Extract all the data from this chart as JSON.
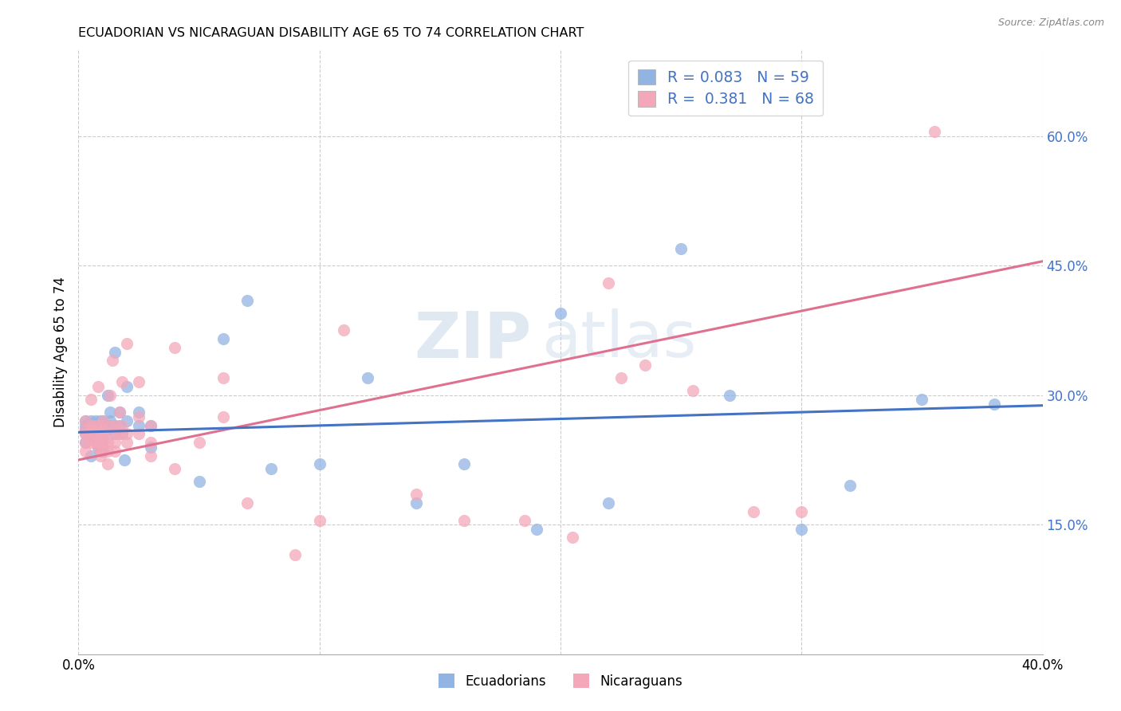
{
  "title": "ECUADORIAN VS NICARAGUAN DISABILITY AGE 65 TO 74 CORRELATION CHART",
  "source": "Source: ZipAtlas.com",
  "ylabel_label": "Disability Age 65 to 74",
  "xlim": [
    0.0,
    0.4
  ],
  "ylim": [
    0.0,
    0.7
  ],
  "blue_color": "#92b4e3",
  "pink_color": "#f4a7b9",
  "blue_line_color": "#4472c4",
  "pink_line_color": "#e07090",
  "R_blue": 0.083,
  "N_blue": 59,
  "R_pink": 0.381,
  "N_pink": 68,
  "legend_text_color": "#4472c4",
  "watermark_zip": "ZIP",
  "watermark_atlas": "atlas",
  "ecuadorians_x": [
    0.003,
    0.003,
    0.003,
    0.003,
    0.003,
    0.005,
    0.005,
    0.005,
    0.005,
    0.007,
    0.007,
    0.007,
    0.008,
    0.008,
    0.008,
    0.009,
    0.009,
    0.009,
    0.009,
    0.01,
    0.01,
    0.01,
    0.01,
    0.01,
    0.012,
    0.012,
    0.013,
    0.013,
    0.013,
    0.015,
    0.015,
    0.015,
    0.017,
    0.017,
    0.018,
    0.019,
    0.02,
    0.02,
    0.025,
    0.025,
    0.03,
    0.03,
    0.05,
    0.06,
    0.07,
    0.08,
    0.1,
    0.12,
    0.14,
    0.16,
    0.19,
    0.2,
    0.22,
    0.25,
    0.27,
    0.3,
    0.32,
    0.35,
    0.38
  ],
  "ecuadorians_y": [
    0.255,
    0.26,
    0.265,
    0.27,
    0.245,
    0.25,
    0.26,
    0.27,
    0.23,
    0.25,
    0.26,
    0.27,
    0.255,
    0.265,
    0.24,
    0.255,
    0.265,
    0.27,
    0.235,
    0.25,
    0.26,
    0.27,
    0.235,
    0.24,
    0.26,
    0.3,
    0.265,
    0.27,
    0.28,
    0.255,
    0.265,
    0.35,
    0.265,
    0.28,
    0.255,
    0.225,
    0.27,
    0.31,
    0.265,
    0.28,
    0.265,
    0.24,
    0.2,
    0.365,
    0.41,
    0.215,
    0.22,
    0.32,
    0.175,
    0.22,
    0.145,
    0.395,
    0.175,
    0.47,
    0.3,
    0.145,
    0.195,
    0.295,
    0.29
  ],
  "nicaraguans_x": [
    0.003,
    0.003,
    0.003,
    0.003,
    0.003,
    0.005,
    0.005,
    0.005,
    0.005,
    0.005,
    0.007,
    0.007,
    0.007,
    0.008,
    0.008,
    0.009,
    0.009,
    0.009,
    0.009,
    0.01,
    0.01,
    0.01,
    0.01,
    0.01,
    0.012,
    0.012,
    0.012,
    0.013,
    0.013,
    0.013,
    0.014,
    0.015,
    0.015,
    0.015,
    0.016,
    0.017,
    0.017,
    0.018,
    0.018,
    0.02,
    0.02,
    0.02,
    0.025,
    0.025,
    0.025,
    0.03,
    0.03,
    0.03,
    0.04,
    0.04,
    0.05,
    0.06,
    0.06,
    0.07,
    0.09,
    0.1,
    0.11,
    0.14,
    0.16,
    0.185,
    0.205,
    0.22,
    0.225,
    0.235,
    0.255,
    0.28,
    0.3,
    0.355
  ],
  "nicaraguans_y": [
    0.245,
    0.255,
    0.26,
    0.27,
    0.235,
    0.245,
    0.25,
    0.26,
    0.265,
    0.295,
    0.245,
    0.255,
    0.265,
    0.24,
    0.31,
    0.23,
    0.245,
    0.255,
    0.265,
    0.235,
    0.245,
    0.255,
    0.26,
    0.27,
    0.22,
    0.235,
    0.245,
    0.255,
    0.265,
    0.3,
    0.34,
    0.235,
    0.245,
    0.265,
    0.255,
    0.255,
    0.28,
    0.265,
    0.315,
    0.245,
    0.255,
    0.36,
    0.255,
    0.275,
    0.315,
    0.23,
    0.245,
    0.265,
    0.215,
    0.355,
    0.245,
    0.275,
    0.32,
    0.175,
    0.115,
    0.155,
    0.375,
    0.185,
    0.155,
    0.155,
    0.135,
    0.43,
    0.32,
    0.335,
    0.305,
    0.165,
    0.165,
    0.605
  ]
}
